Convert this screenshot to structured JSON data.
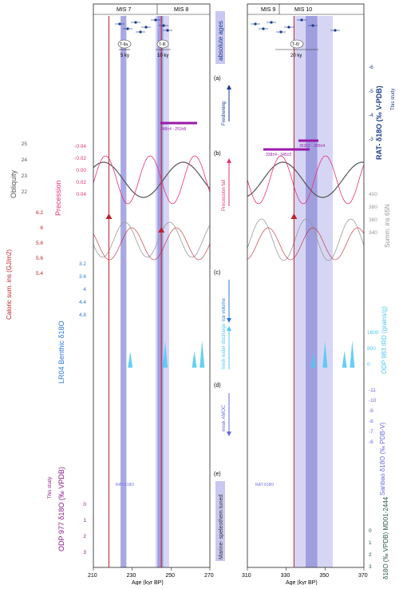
{
  "chart_data": {
    "type": "line",
    "left_panel": {
      "xlim": [
        210,
        270
      ],
      "xticks": [
        "210",
        "230",
        "250",
        "270"
      ],
      "xlabel": "Age (kyr BP)",
      "mis_labels": [
        "MIS 7",
        "MIS 8"
      ],
      "termination_labels": [
        "T-IIa",
        "T-III"
      ],
      "durations": [
        "5 ky",
        "10 ky"
      ],
      "bar_label": "248±4 - 253±8"
    },
    "right_panel": {
      "xlim": [
        310,
        370
      ],
      "xticks": [
        "310",
        "330",
        "350",
        "370"
      ],
      "xlabel": "Age (kyr BP)",
      "mis_labels": [
        "MIS 9",
        "MIS 10"
      ],
      "termination_labels": [
        "T-IV"
      ],
      "durations": [
        "20 ky"
      ],
      "bar_labels": [
        "328±4 - 345±2",
        "352±2 - 355±4"
      ]
    },
    "strip_labels": {
      "top": "absolute ages",
      "a_tag": "(a)",
      "a_note": "Freshening",
      "b_tag": "(b)",
      "b_note": "Precession fall",
      "c_tag": "(c)",
      "c_note": "ice volume",
      "fresh_note": "fresh water discharge",
      "d_tag": "(d)",
      "d_note": "weak AMOC",
      "e_tag": "(e)",
      "e_note": "Marine- speleothem tuned"
    },
    "axes": {
      "rat_label": "RAT- δ18O (‰ V-PDB)",
      "rat_study": "This study",
      "rat_ticks": [
        "-6",
        "-5",
        "-4",
        "-3"
      ],
      "obliquity_label": "Obliquity",
      "obliquity_ticks": [
        "25",
        "24",
        "23",
        "22"
      ],
      "precession_label": "Precession",
      "precession_ticks": [
        "-0.04",
        "-0.02",
        "0.00",
        "0.02",
        "0.04"
      ],
      "insolation_label": "Summ. ins 65N",
      "insolation_ticks": [
        "400",
        "380",
        "360",
        "340"
      ],
      "caloric_label": "Caloric sum. ins (GJ/m2)",
      "caloric_ticks": [
        "6.2",
        "6",
        "5.8",
        "5.6",
        "5.4"
      ],
      "lr04_label": "LR04 Benthic δ18O",
      "lr04_ticks": [
        "3.2",
        "3.6",
        "4",
        "4.4",
        "4.8"
      ],
      "ird_label": "ODP 983 IRD (grains/g)",
      "ird_ticks": [
        "1600",
        "800",
        "0"
      ],
      "sanbao_label": "Sanbao δ18O (‰ PDB-V)",
      "sanbao_ticks": [
        "-11",
        "-10",
        "-9",
        "-8",
        "-7",
        "-6"
      ],
      "odp977_label": "ODP 977 δ18O (‰ VPDB)",
      "odp977_study": "This study",
      "odp977_ticks": [
        "0",
        "1",
        "2",
        "3"
      ],
      "md01_label": "δ18O (‰ VPDB) MD01-2444",
      "md01_ticks": [
        "0",
        "1",
        "2",
        "3"
      ],
      "rat_overlay": "RAT-δ18O"
    },
    "colors": {
      "rat": "#1a3a8c",
      "precession": "#e8307a",
      "obliquity": "#555555",
      "insolation": "#999999",
      "caloric": "#c0202a",
      "lr04": "#2a78d6",
      "ird": "#4cc8f0",
      "sanbao": "#6a6ae0",
      "odp977": "#8a1a8a",
      "md01": "#2a5a4a",
      "bar": "#9a1aa8",
      "band": "#c8c8f0",
      "bandDark": "#8c8cd8"
    }
  }
}
